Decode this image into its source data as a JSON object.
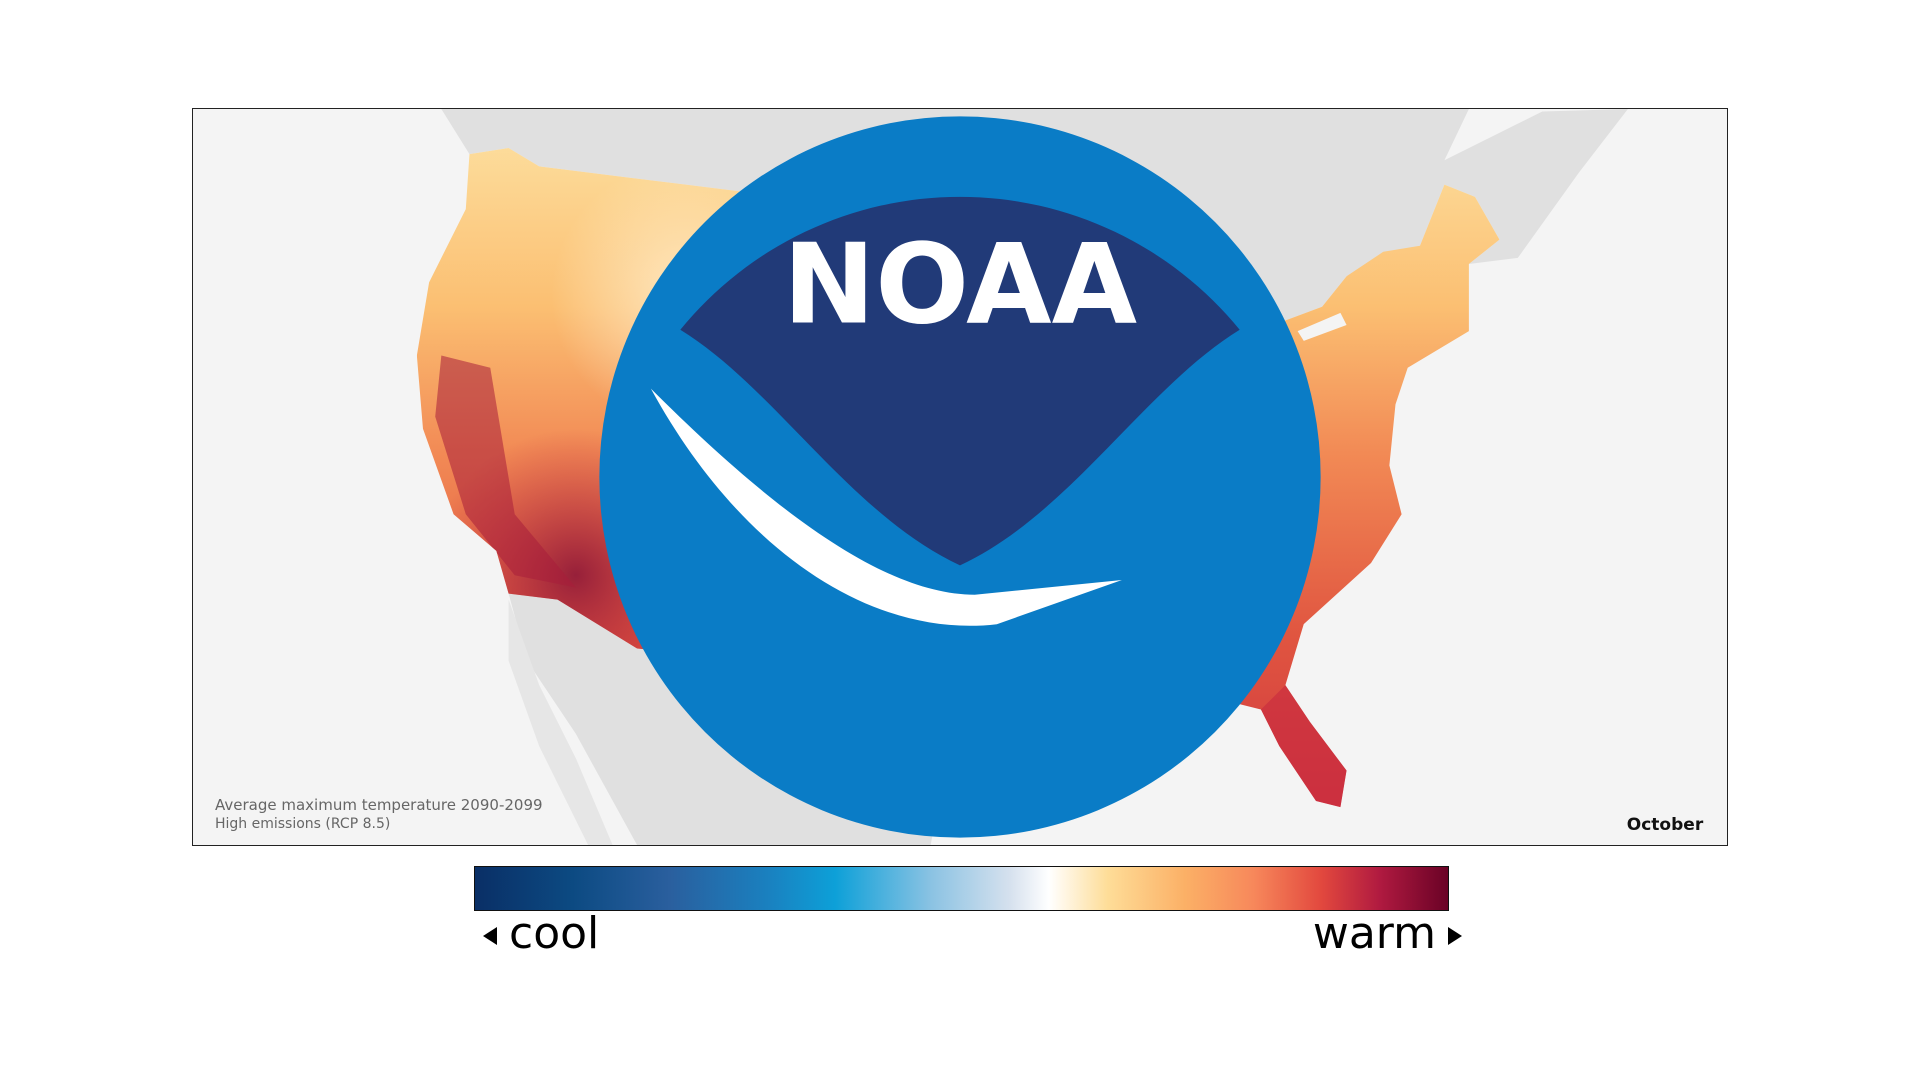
{
  "map": {
    "caption_title": "Average maximum temperature 2090-2099",
    "caption_scenario": "High emissions (RCP 8.5)",
    "month": "October",
    "logo_text": "NOAA"
  },
  "legend": {
    "cool_label": "cool",
    "warm_label": "warm",
    "colors": [
      "#0a2f66",
      "#1a80bf",
      "#0da0d8",
      "#ffffff",
      "#fedd98",
      "#f7885b",
      "#e2483e",
      "#b01a40",
      "#6a0226"
    ]
  },
  "colors": {
    "land_background": "#e0e0e0",
    "water_background": "#f4f4f4",
    "logo_dark_blue": "#213a78",
    "logo_light_blue": "#0a7cc6"
  }
}
